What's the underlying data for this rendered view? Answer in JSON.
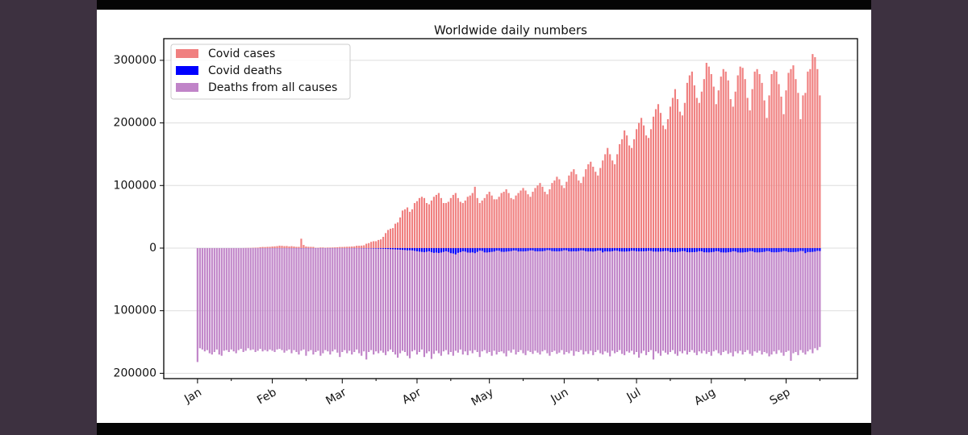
{
  "chart_data": {
    "type": "bar",
    "title": "Worldwide daily numbers",
    "xlim": [
      -14,
      273.6
    ],
    "xticks": [
      {
        "value": 0,
        "label": "Jan"
      },
      {
        "value": 31,
        "label": "Feb"
      },
      {
        "value": 60,
        "label": "Mar"
      },
      {
        "value": 91,
        "label": "Apr"
      },
      {
        "value": 121,
        "label": "May"
      },
      {
        "value": 152,
        "label": "Jun"
      },
      {
        "value": 182,
        "label": "Jul"
      },
      {
        "value": 213,
        "label": "Aug"
      },
      {
        "value": 244,
        "label": "Sep"
      }
    ],
    "xminorticks": [
      14,
      45,
      74,
      105,
      135,
      166,
      196,
      227,
      258
    ],
    "ylim": [
      -208500,
      334600
    ],
    "yticks": [
      {
        "value": -200000,
        "label": "200000"
      },
      {
        "value": -100000,
        "label": "100000"
      },
      0,
      100000,
      200000,
      300000
    ],
    "grid": true,
    "legend": "upper left",
    "x": [
      0,
      1,
      2,
      3,
      4,
      5,
      6,
      7,
      8,
      9,
      10,
      11,
      12,
      13,
      14,
      15,
      16,
      17,
      18,
      19,
      20,
      21,
      22,
      23,
      24,
      25,
      26,
      27,
      28,
      29,
      30,
      31,
      32,
      33,
      34,
      35,
      36,
      37,
      38,
      39,
      40,
      41,
      42,
      43,
      44,
      45,
      46,
      47,
      48,
      49,
      50,
      51,
      52,
      53,
      54,
      55,
      56,
      57,
      58,
      59,
      60,
      61,
      62,
      63,
      64,
      65,
      66,
      67,
      68,
      69,
      70,
      71,
      72,
      73,
      74,
      75,
      76,
      77,
      78,
      79,
      80,
      81,
      82,
      83,
      84,
      85,
      86,
      87,
      88,
      89,
      90,
      91,
      92,
      93,
      94,
      95,
      96,
      97,
      98,
      99,
      100,
      101,
      102,
      103,
      104,
      105,
      106,
      107,
      108,
      109,
      110,
      111,
      112,
      113,
      114,
      115,
      116,
      117,
      118,
      119,
      120,
      121,
      122,
      123,
      124,
      125,
      126,
      127,
      128,
      129,
      130,
      131,
      132,
      133,
      134,
      135,
      136,
      137,
      138,
      139,
      140,
      141,
      142,
      143,
      144,
      145,
      146,
      147,
      148,
      149,
      150,
      151,
      152,
      153,
      154,
      155,
      156,
      157,
      158,
      159,
      160,
      161,
      162,
      163,
      164,
      165,
      166,
      167,
      168,
      169,
      170,
      171,
      172,
      173,
      174,
      175,
      176,
      177,
      178,
      179,
      180,
      181,
      182,
      183,
      184,
      185,
      186,
      187,
      188,
      189,
      190,
      191,
      192,
      193,
      194,
      195,
      196,
      197,
      198,
      199,
      200,
      201,
      202,
      203,
      204,
      205,
      206,
      207,
      208,
      209,
      210,
      211,
      212,
      213,
      214,
      215,
      216,
      217,
      218,
      219,
      220,
      221,
      222,
      223,
      224,
      225,
      226,
      227,
      228,
      229,
      230,
      231,
      232,
      233,
      234,
      235,
      236,
      237,
      238,
      239,
      240,
      241,
      242,
      243,
      244,
      245,
      246,
      247,
      248,
      249,
      250,
      251,
      252,
      253,
      254,
      255,
      256,
      257,
      258
    ],
    "series": [
      {
        "name": "Covid cases",
        "color": "#f08080",
        "values": [
          0,
          0,
          0,
          0,
          0,
          0,
          0,
          0,
          0,
          0,
          0,
          0,
          0,
          0,
          0,
          0,
          0,
          0,
          0,
          100,
          200,
          300,
          300,
          600,
          700,
          800,
          1500,
          1800,
          1700,
          2000,
          2100,
          2600,
          2800,
          3200,
          3900,
          3700,
          3200,
          3400,
          2700,
          3100,
          2600,
          2000,
          2000,
          15000,
          5000,
          2600,
          2100,
          2000,
          1900,
          500,
          600,
          1000,
          1000,
          600,
          900,
          900,
          1000,
          1200,
          1400,
          1800,
          1800,
          2000,
          2200,
          2300,
          2600,
          2800,
          3800,
          3800,
          4000,
          4500,
          7000,
          8000,
          10000,
          11000,
          11000,
          13000,
          14000,
          18000,
          24000,
          29000,
          31000,
          32000,
          39000,
          41000,
          49000,
          60000,
          62000,
          65000,
          58000,
          62000,
          72000,
          75000,
          80000,
          82000,
          80000,
          72000,
          70000,
          76000,
          82000,
          85000,
          88000,
          80000,
          72000,
          72000,
          74000,
          80000,
          85000,
          88000,
          80000,
          74000,
          72000,
          76000,
          82000,
          84000,
          88000,
          98000,
          80000,
          72000,
          76000,
          80000,
          86000,
          90000,
          84000,
          78000,
          78000,
          82000,
          88000,
          90000,
          94000,
          88000,
          80000,
          78000,
          84000,
          88000,
          92000,
          96000,
          92000,
          86000,
          82000,
          90000,
          96000,
          100000,
          104000,
          98000,
          90000,
          86000,
          94000,
          104000,
          108000,
          114000,
          110000,
          100000,
          96000,
          106000,
          116000,
          122000,
          126000,
          118000,
          108000,
          104000,
          114000,
          126000,
          134000,
          138000,
          130000,
          122000,
          116000,
          128000,
          140000,
          150000,
          160000,
          150000,
          140000,
          134000,
          150000,
          166000,
          174000,
          188000,
          180000,
          164000,
          160000,
          174000,
          190000,
          200000,
          208000,
          196000,
          180000,
          176000,
          190000,
          210000,
          222000,
          230000,
          216000,
          196000,
          190000,
          206000,
          226000,
          240000,
          254000,
          238000,
          218000,
          212000,
          232000,
          264000,
          276000,
          282000,
          260000,
          240000,
          232000,
          250000,
          270000,
          296000,
          290000,
          278000,
          258000,
          230000,
          252000,
          274000,
          286000,
          282000,
          268000,
          238000,
          226000,
          250000,
          276000,
          290000,
          288000,
          270000,
          240000,
          220000,
          254000,
          282000,
          286000,
          278000,
          264000,
          236000,
          208000,
          244000,
          278000,
          284000,
          282000,
          262000,
          242000,
          214000,
          252000,
          280000,
          286000,
          292000,
          270000,
          248000,
          206000,
          244000,
          248000,
          282000,
          286000,
          310000,
          305000,
          286000,
          244000
        ]
      },
      {
        "name": "Covid deaths",
        "color": "#0000ff",
        "values": [
          0,
          0,
          0,
          0,
          0,
          0,
          0,
          0,
          0,
          0,
          0,
          0,
          0,
          0,
          0,
          0,
          0,
          0,
          0,
          0,
          0,
          -10,
          -20,
          -20,
          -30,
          -20,
          -40,
          -50,
          -30,
          -50,
          -60,
          -60,
          -70,
          -80,
          -90,
          -70,
          -70,
          -80,
          -90,
          -90,
          -100,
          -110,
          -120,
          -250,
          -140,
          -140,
          -140,
          -100,
          -100,
          -140,
          -120,
          -110,
          -100,
          -110,
          -100,
          -150,
          -100,
          -80,
          -60,
          -50,
          -60,
          -70,
          -80,
          -90,
          -100,
          -200,
          -100,
          -150,
          -200,
          -300,
          -300,
          -350,
          -400,
          -500,
          -600,
          -700,
          -900,
          -1000,
          -1200,
          -1400,
          -1700,
          -1800,
          -2000,
          -2300,
          -2500,
          -2800,
          -3000,
          -3500,
          -3300,
          -3600,
          -4200,
          -5000,
          -5500,
          -6000,
          -6500,
          -5800,
          -5000,
          -6500,
          -7500,
          -7000,
          -7800,
          -7000,
          -6000,
          -5000,
          -6000,
          -8000,
          -8500,
          -10000,
          -7500,
          -6500,
          -5000,
          -5500,
          -7000,
          -7200,
          -6800,
          -8000,
          -6000,
          -4000,
          -4500,
          -6800,
          -7000,
          -6500,
          -6000,
          -5500,
          -4000,
          -4200,
          -5800,
          -6000,
          -5600,
          -5200,
          -4800,
          -3800,
          -3900,
          -5400,
          -5200,
          -5300,
          -5000,
          -4500,
          -3600,
          -3700,
          -5000,
          -5200,
          -5100,
          -5000,
          -4400,
          -3200,
          -3400,
          -4800,
          -5000,
          -5200,
          -5100,
          -4600,
          -3400,
          -3500,
          -5200,
          -5300,
          -5000,
          -5200,
          -4700,
          -3600,
          -3800,
          -5000,
          -5400,
          -5200,
          -5500,
          -4800,
          -3900,
          -4000,
          -6800,
          -5200,
          -5300,
          -5400,
          -4900,
          -4000,
          -4200,
          -5200,
          -5400,
          -5500,
          -5300,
          -5000,
          -4100,
          -4300,
          -5000,
          -5200,
          -5100,
          -5000,
          -4800,
          -4200,
          -4400,
          -5400,
          -5500,
          -5600,
          -5400,
          -5000,
          -4300,
          -4500,
          -6000,
          -6200,
          -6400,
          -6100,
          -5500,
          -4600,
          -4900,
          -6400,
          -6600,
          -6500,
          -6300,
          -5900,
          -4800,
          -5100,
          -6600,
          -6700,
          -6800,
          -6500,
          -6000,
          -4900,
          -5200,
          -6700,
          -6900,
          -7000,
          -6600,
          -6100,
          -5000,
          -5300,
          -6800,
          -7000,
          -6900,
          -6500,
          -6000,
          -4800,
          -5100,
          -6600,
          -6800,
          -6700,
          -6400,
          -5900,
          -4700,
          -5000,
          -6500,
          -6700,
          -6600,
          -6300,
          -5800,
          -4600,
          -4900,
          -6200,
          -6400,
          -6300,
          -6100,
          -5600,
          -4400,
          -4700,
          -8000,
          -6200,
          -6300,
          -6000,
          -5500,
          -4300,
          -4600
        ]
      },
      {
        "name": "Deaths from all causes",
        "color": "#c084c8",
        "values": [
          -182000,
          -160000,
          -162000,
          -165000,
          -163000,
          -168000,
          -170000,
          -166000,
          -162000,
          -170000,
          -172000,
          -164000,
          -163000,
          -166000,
          -162000,
          -165000,
          -168000,
          -163000,
          -161000,
          -166000,
          -164000,
          -160000,
          -163000,
          -162000,
          -166000,
          -164000,
          -161000,
          -165000,
          -163000,
          -165000,
          -162000,
          -164000,
          -166000,
          -162000,
          -161000,
          -163000,
          -167000,
          -164000,
          -162000,
          -168000,
          -163000,
          -166000,
          -170000,
          -164000,
          -162000,
          -172000,
          -165000,
          -163000,
          -170000,
          -166000,
          -164000,
          -172000,
          -168000,
          -163000,
          -165000,
          -170000,
          -165000,
          -162000,
          -167000,
          -174000,
          -166000,
          -163000,
          -168000,
          -164000,
          -170000,
          -166000,
          -162000,
          -168000,
          -172000,
          -165000,
          -178000,
          -166000,
          -163000,
          -170000,
          -165000,
          -168000,
          -164000,
          -167000,
          -171000,
          -165000,
          -162000,
          -166000,
          -170000,
          -175000,
          -168000,
          -164000,
          -166000,
          -172000,
          -176000,
          -165000,
          -163000,
          -170000,
          -166000,
          -162000,
          -174000,
          -168000,
          -165000,
          -177000,
          -169000,
          -164000,
          -168000,
          -172000,
          -165000,
          -163000,
          -170000,
          -166000,
          -172000,
          -164000,
          -167000,
          -162000,
          -170000,
          -165000,
          -171000,
          -164000,
          -168000,
          -163000,
          -166000,
          -174000,
          -165000,
          -163000,
          -168000,
          -166000,
          -172000,
          -164000,
          -170000,
          -166000,
          -165000,
          -168000,
          -173000,
          -164000,
          -167000,
          -162000,
          -170000,
          -166000,
          -163000,
          -168000,
          -171000,
          -164000,
          -166000,
          -169000,
          -164000,
          -167000,
          -170000,
          -165000,
          -163000,
          -168000,
          -172000,
          -166000,
          -164000,
          -169000,
          -167000,
          -163000,
          -170000,
          -166000,
          -168000,
          -164000,
          -172000,
          -165000,
          -166000,
          -163000,
          -170000,
          -165000,
          -169000,
          -164000,
          -171000,
          -166000,
          -163000,
          -168000,
          -170000,
          -165000,
          -167000,
          -173000,
          -164000,
          -168000,
          -166000,
          -163000,
          -169000,
          -171000,
          -165000,
          -167000,
          -164000,
          -170000,
          -166000,
          -175000,
          -168000,
          -164000,
          -171000,
          -166000,
          -163000,
          -178000,
          -165000,
          -168000,
          -172000,
          -164000,
          -167000,
          -170000,
          -166000,
          -163000,
          -169000,
          -172000,
          -165000,
          -168000,
          -164000,
          -170000,
          -166000,
          -163000,
          -167000,
          -171000,
          -165000,
          -168000,
          -164000,
          -169000,
          -166000,
          -172000,
          -165000,
          -163000,
          -168000,
          -171000,
          -166000,
          -164000,
          -169000,
          -167000,
          -173000,
          -165000,
          -168000,
          -164000,
          -170000,
          -166000,
          -163000,
          -169000,
          -172000,
          -165000,
          -167000,
          -164000,
          -170000,
          -166000,
          -168000,
          -173000,
          -170000,
          -165000,
          -169000,
          -163000,
          -167000,
          -172000,
          -166000,
          -164000,
          -180000,
          -168000,
          -166000,
          -171000,
          -163000,
          -167000,
          -170000,
          -165000,
          -162000,
          -168000,
          -160000,
          -163000,
          -158000
        ]
      }
    ]
  }
}
